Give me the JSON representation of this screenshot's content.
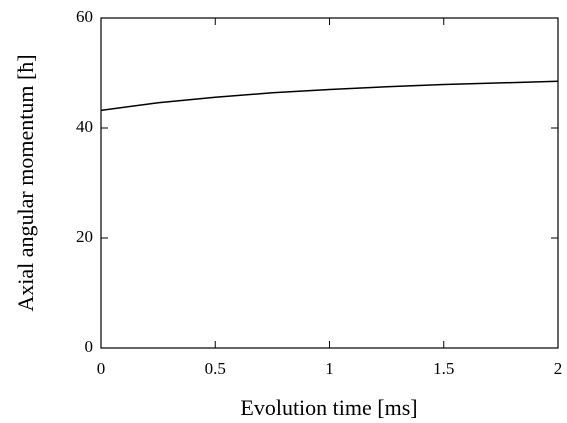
{
  "chart_data": {
    "type": "line",
    "xlabel": "Evolution time [ms]",
    "ylabel": "Axial angular momentum [ħ]",
    "x": [
      0,
      0.25,
      0.5,
      0.75,
      1,
      1.25,
      1.5,
      1.75,
      2
    ],
    "series": [
      {
        "color": "#000000",
        "values": [
          43.2,
          44.6,
          45.6,
          46.4,
          47.0,
          47.5,
          47.9,
          48.2,
          48.5
        ]
      }
    ],
    "xlim": [
      0,
      2
    ],
    "ylim": [
      0,
      60
    ],
    "xticks": [
      0,
      0.5,
      1,
      1.5,
      2
    ],
    "yticks": [
      0,
      20,
      40,
      60
    ]
  }
}
